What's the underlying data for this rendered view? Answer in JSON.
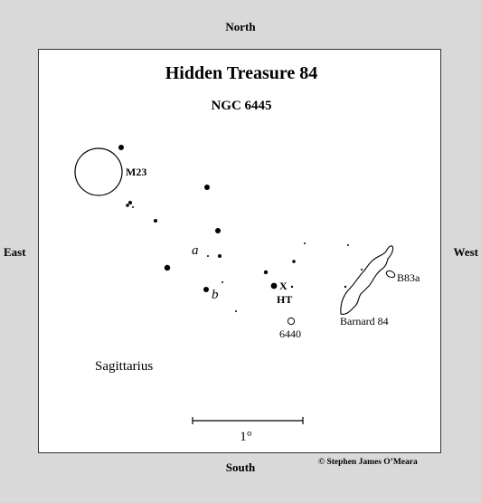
{
  "map": {
    "title": "Hidden Treasure 84",
    "subtitle": "NGC 6445",
    "directions": {
      "north": "North",
      "south": "South",
      "east": "East",
      "west": "West"
    },
    "labels": {
      "m23": "M23",
      "marker_x": "X",
      "ht": "HT",
      "ngc6440": "6440",
      "b83a": "B83a",
      "barnard84": "Barnard 84",
      "star_a": "a",
      "star_b": "b",
      "constellation": "Sagittarius"
    },
    "scale_bar_label": "1°",
    "credit": "© Stephen James O’Meara",
    "colors": {
      "background": "#d9d9d9",
      "panel": "#ffffff",
      "ink": "#000000"
    }
  }
}
